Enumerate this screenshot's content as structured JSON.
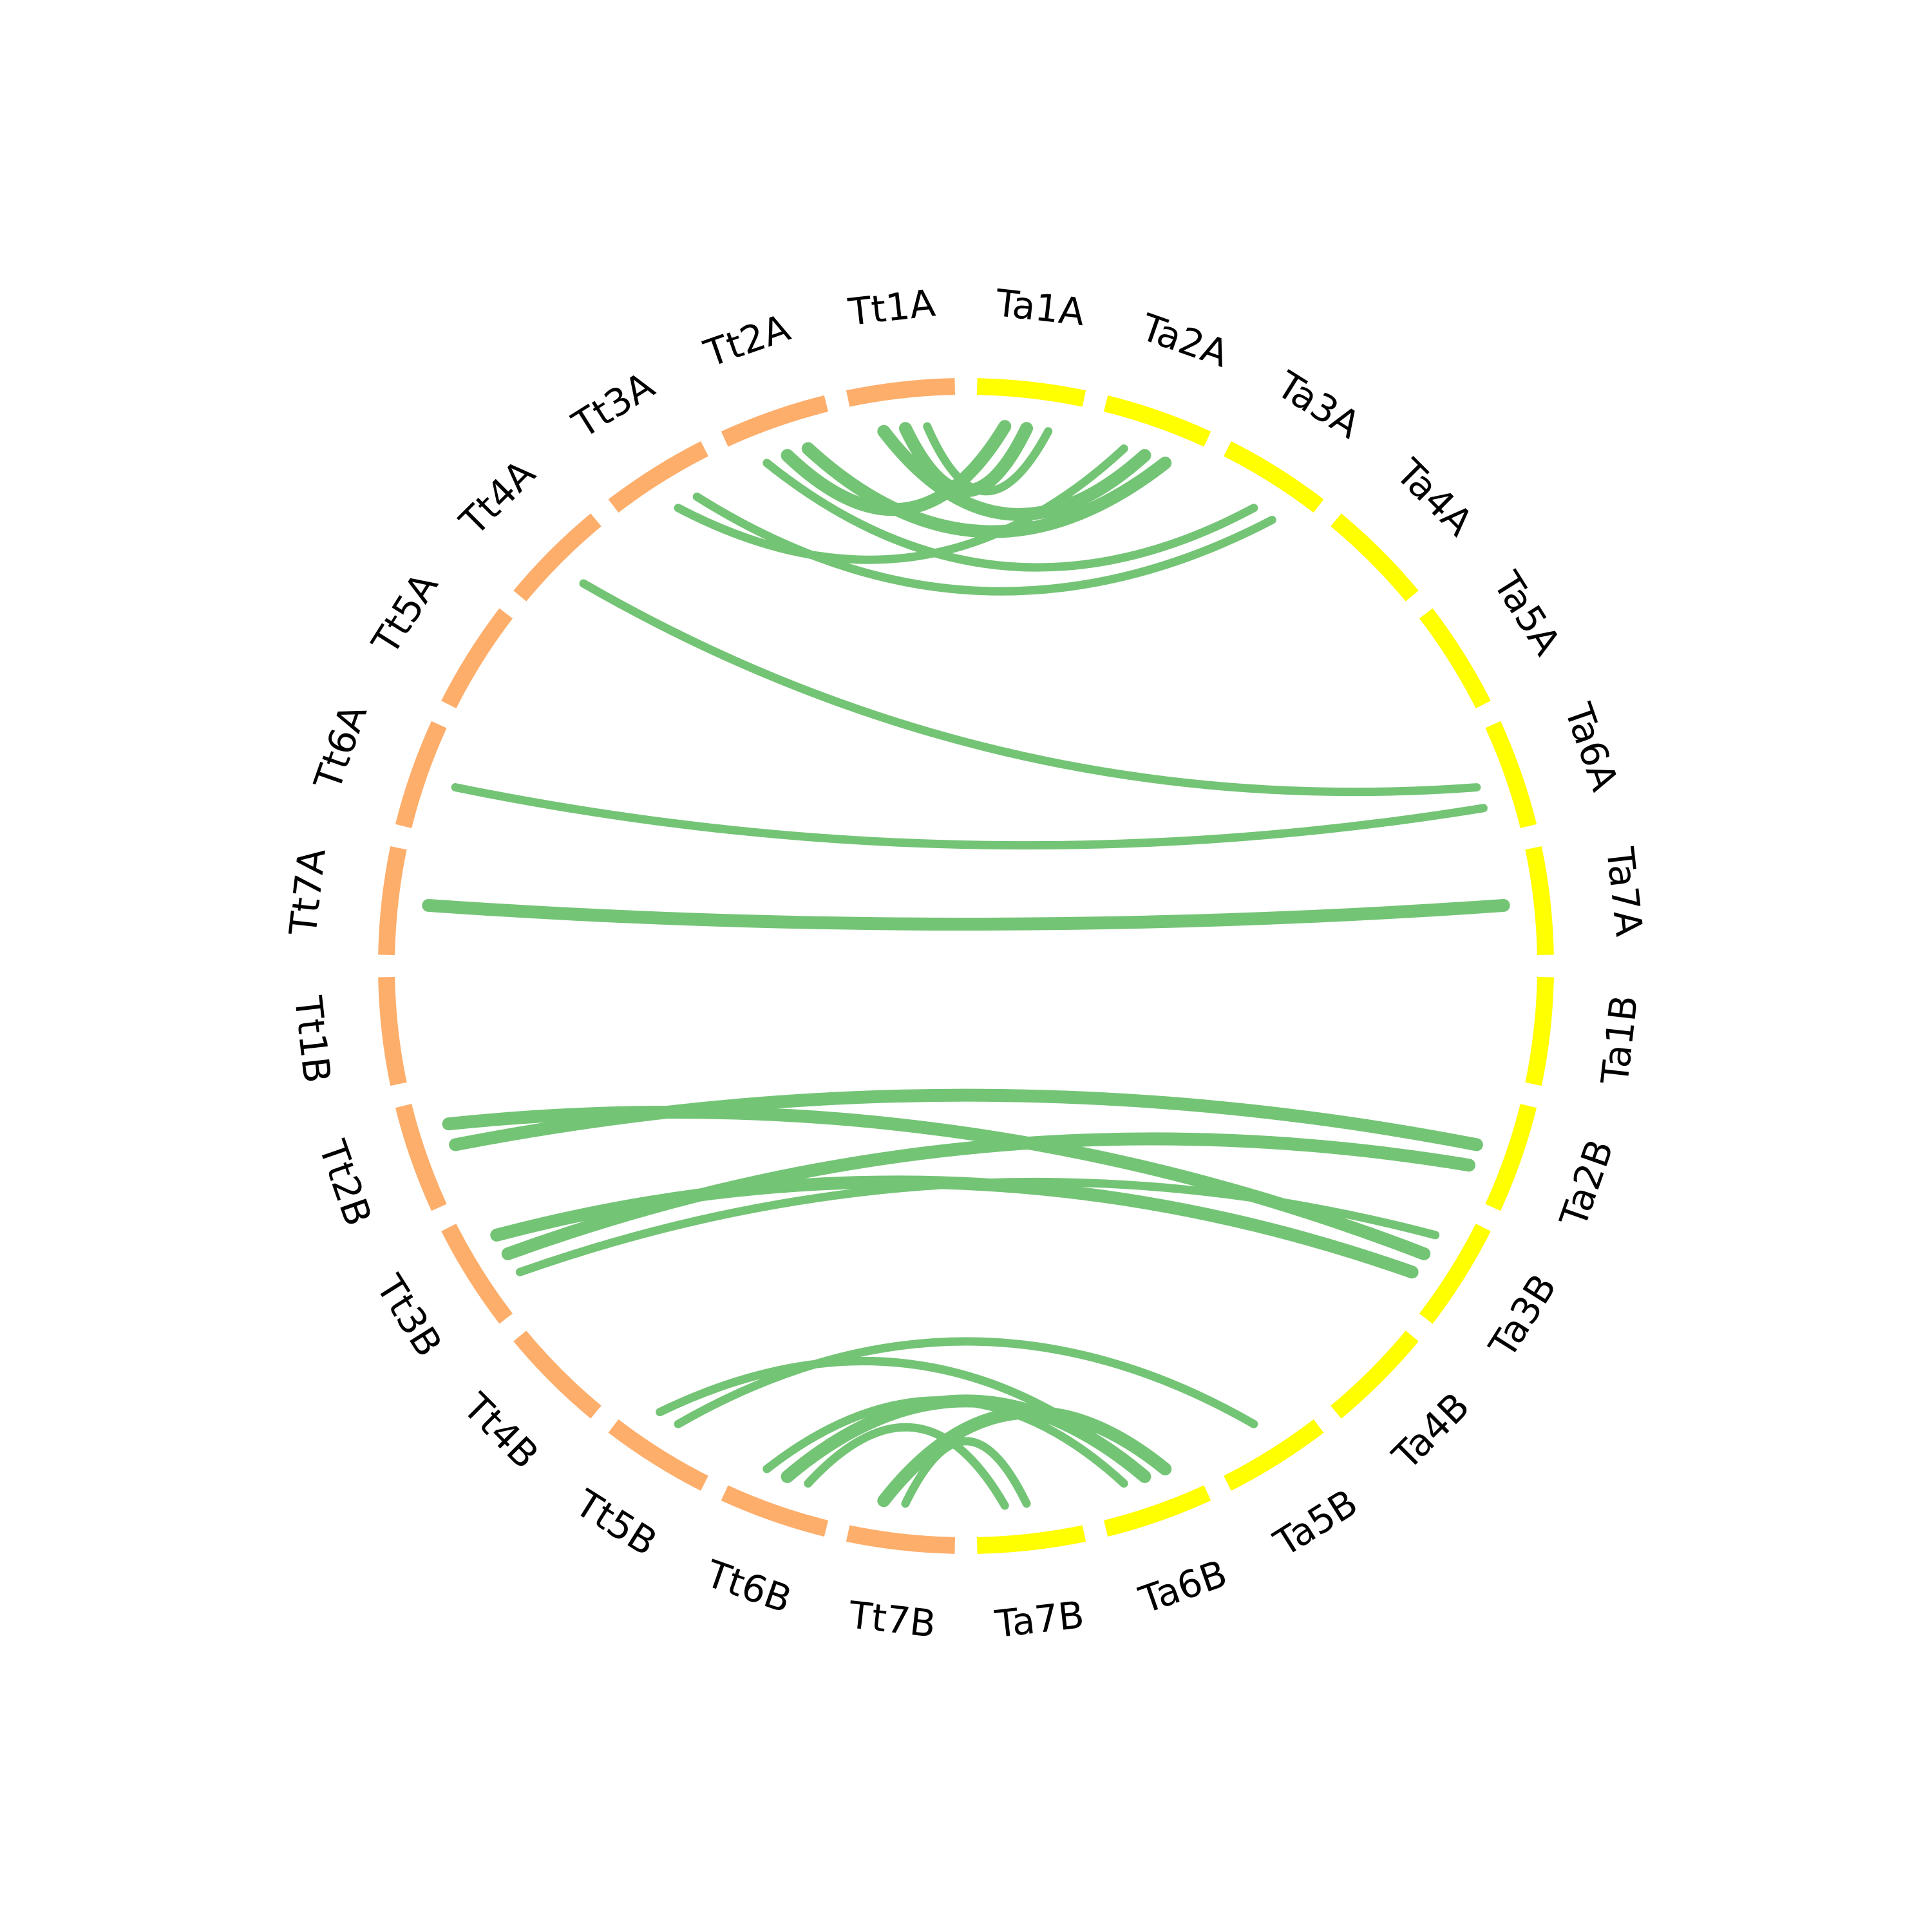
{
  "colors": {
    "tt_group": "#FDAE6B",
    "ta_group": "#FFFF00",
    "link": "#74C476",
    "label": "#000000",
    "background": "#FFFFFF"
  },
  "segments": [
    {
      "id": "Tt1A",
      "label": "Tt1A",
      "group": "tt_group"
    },
    {
      "id": "Ta1A",
      "label": "Ta1A",
      "group": "ta_group"
    },
    {
      "id": "Ta2A",
      "label": "Ta2A",
      "group": "ta_group"
    },
    {
      "id": "Ta3A",
      "label": "Ta3A",
      "group": "ta_group"
    },
    {
      "id": "Ta4A",
      "label": "Ta4A",
      "group": "ta_group"
    },
    {
      "id": "Ta5A",
      "label": "Ta5A",
      "group": "ta_group"
    },
    {
      "id": "Ta6A",
      "label": "Ta6A",
      "group": "ta_group"
    },
    {
      "id": "Ta7A",
      "label": "Ta7A",
      "group": "ta_group"
    },
    {
      "id": "Ta1B",
      "label": "Ta1B",
      "group": "ta_group"
    },
    {
      "id": "Ta2B",
      "label": "Ta2B",
      "group": "ta_group"
    },
    {
      "id": "Ta3B",
      "label": "Ta3B",
      "group": "ta_group"
    },
    {
      "id": "Ta4B",
      "label": "Ta4B",
      "group": "ta_group"
    },
    {
      "id": "Ta5B",
      "label": "Ta5B",
      "group": "ta_group"
    },
    {
      "id": "Ta6B",
      "label": "Ta6B",
      "group": "ta_group"
    },
    {
      "id": "Ta7B",
      "label": "Ta7B",
      "group": "ta_group"
    },
    {
      "id": "Tt7B",
      "label": "Tt7B",
      "group": "tt_group"
    },
    {
      "id": "Tt6B",
      "label": "Tt6B",
      "group": "tt_group"
    },
    {
      "id": "Tt5B",
      "label": "Tt5B",
      "group": "tt_group"
    },
    {
      "id": "Tt4B",
      "label": "Tt4B",
      "group": "tt_group"
    },
    {
      "id": "Tt3B",
      "label": "Tt3B",
      "group": "tt_group"
    },
    {
      "id": "Tt2B",
      "label": "Tt2B",
      "group": "tt_group"
    },
    {
      "id": "Tt1B",
      "label": "Tt1B",
      "group": "tt_group"
    },
    {
      "id": "Tt7A",
      "label": "Tt7A",
      "group": "tt_group"
    },
    {
      "id": "Tt6A",
      "label": "Tt6A",
      "group": "tt_group"
    },
    {
      "id": "Tt5A",
      "label": "Tt5A",
      "group": "tt_group"
    },
    {
      "id": "Tt4A",
      "label": "Tt4A",
      "group": "tt_group"
    },
    {
      "id": "Tt3A",
      "label": "Tt3A",
      "group": "tt_group"
    },
    {
      "id": "Tt2A",
      "label": "Tt2A",
      "group": "tt_group"
    }
  ],
  "links": [
    {
      "from": "Tt1A",
      "to": "Ta1A",
      "weight": "thick"
    },
    {
      "from": "Tt1A",
      "to": "Ta1A",
      "weight": "normal"
    },
    {
      "from": "Tt2A",
      "to": "Ta1A",
      "weight": "thick"
    },
    {
      "from": "Tt1A",
      "to": "Ta2A",
      "weight": "thick"
    },
    {
      "from": "Tt2A",
      "to": "Ta2A",
      "weight": "thick"
    },
    {
      "from": "Tt2A",
      "to": "Ta3A",
      "weight": "normal"
    },
    {
      "from": "Tt3A",
      "to": "Ta2A",
      "weight": "normal"
    },
    {
      "from": "Tt3A",
      "to": "Ta3A",
      "weight": "normal"
    },
    {
      "from": "Tt4A",
      "to": "Ta6A",
      "weight": "normal"
    },
    {
      "from": "Tt6A",
      "to": "Ta6A",
      "weight": "normal"
    },
    {
      "from": "Tt7A",
      "to": "Ta7A",
      "weight": "thick"
    },
    {
      "from": "Tt2B",
      "to": "Ta2B",
      "weight": "thick"
    },
    {
      "from": "Tt2B",
      "to": "Ta3B",
      "weight": "thick"
    },
    {
      "from": "Tt3B",
      "to": "Ta2B",
      "weight": "thick"
    },
    {
      "from": "Tt3B",
      "to": "Ta3B",
      "weight": "thick"
    },
    {
      "from": "Tt3B",
      "to": "Ta3B",
      "weight": "normal"
    },
    {
      "from": "Tt5B",
      "to": "Ta5B",
      "weight": "normal"
    },
    {
      "from": "Tt6B",
      "to": "Ta6B",
      "weight": "thick"
    },
    {
      "from": "Tt6B",
      "to": "Ta6B",
      "weight": "normal"
    },
    {
      "from": "Tt7B",
      "to": "Ta7B",
      "weight": "normal"
    },
    {
      "from": "Tt7B",
      "to": "Ta6B",
      "weight": "thick"
    },
    {
      "from": "Tt5B",
      "to": "Ta6B",
      "weight": "normal"
    },
    {
      "from": "Tt6B",
      "to": "Ta7B",
      "weight": "normal"
    }
  ]
}
